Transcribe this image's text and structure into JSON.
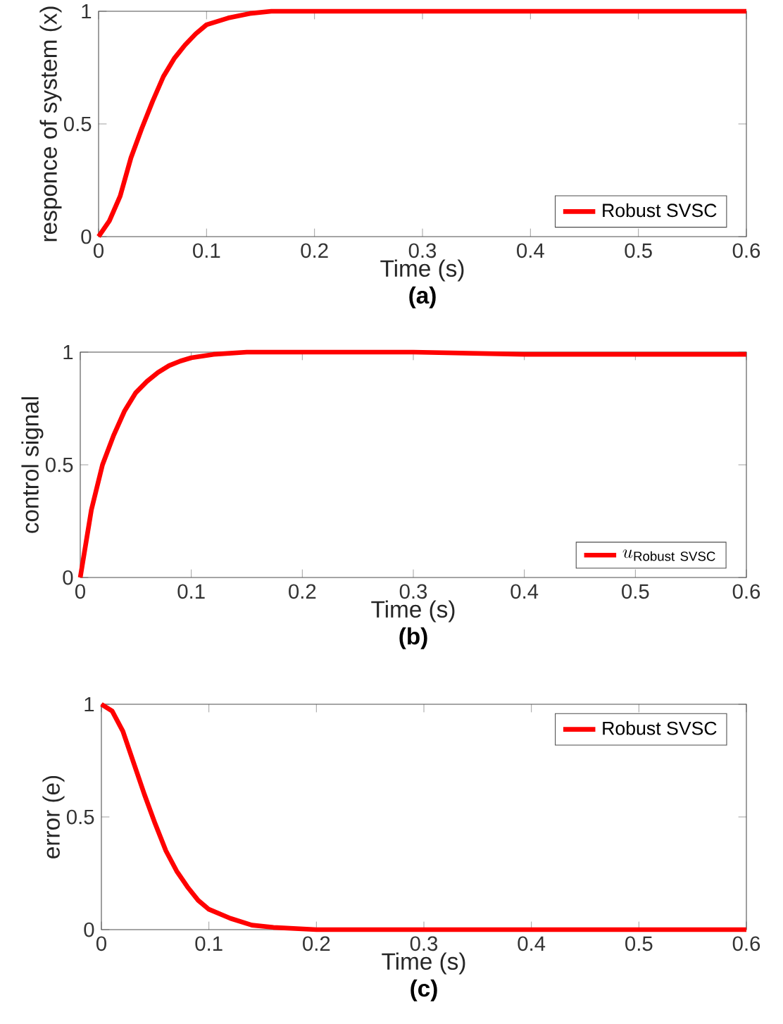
{
  "chart_data": [
    {
      "type": "line",
      "xlabel": "Time (s)",
      "ylabel": "responce of system (x)",
      "annotations": [
        "**(a)**"
      ],
      "xlim": [
        0,
        0.6
      ],
      "ylim": [
        0,
        1
      ],
      "xticks": [
        0,
        0.1,
        0.2,
        0.3,
        0.4,
        0.5,
        0.6
      ],
      "yticks": [
        0,
        0.5,
        1
      ],
      "legend": "bottom right",
      "x": [
        0,
        0.01,
        0.02,
        0.03,
        0.04,
        0.05,
        0.06,
        0.07,
        0.08,
        0.09,
        0.1,
        0.12,
        0.14,
        0.16,
        0.2,
        0.3,
        0.4,
        0.5,
        0.6
      ],
      "series": [
        {
          "name": "Robust SVSC",
          "color": "#ff0000",
          "values": [
            0,
            0.07,
            0.18,
            0.35,
            0.48,
            0.6,
            0.71,
            0.79,
            0.85,
            0.9,
            0.94,
            0.97,
            0.99,
            1,
            1,
            1,
            1,
            1,
            1
          ]
        }
      ]
    },
    {
      "type": "line",
      "xlabel": "Time (s)",
      "ylabel": "control signal",
      "annotations": [
        "**(b)**"
      ],
      "xlim": [
        0,
        0.6
      ],
      "ylim": [
        0,
        1
      ],
      "xticks": [
        0,
        0.1,
        0.2,
        0.3,
        0.4,
        0.5,
        0.6
      ],
      "yticks": [
        0,
        0.5,
        1
      ],
      "legend": "bottom right",
      "x": [
        0,
        0.01,
        0.02,
        0.03,
        0.04,
        0.05,
        0.06,
        0.07,
        0.08,
        0.09,
        0.1,
        0.12,
        0.15,
        0.2,
        0.3,
        0.4,
        0.5,
        0.6
      ],
      "series": [
        {
          "name": "u_{\\mathrm{Robust\\ SVSC}}",
          "color": "#ff0000",
          "values": [
            0,
            0.3,
            0.5,
            0.63,
            0.74,
            0.82,
            0.87,
            0.91,
            0.94,
            0.96,
            0.975,
            0.99,
            1,
            1,
            1,
            0.99,
            0.99,
            0.99
          ]
        }
      ]
    },
    {
      "type": "line",
      "xlabel": "Time (s)",
      "ylabel": "error (e)",
      "annotations": [
        "**(c)**"
      ],
      "xlim": [
        0,
        0.6
      ],
      "ylim": [
        0,
        1
      ],
      "xticks": [
        0,
        0.1,
        0.2,
        0.3,
        0.4,
        0.5,
        0.6
      ],
      "yticks": [
        0,
        0.5,
        1
      ],
      "legend": "top right",
      "x": [
        0,
        0.01,
        0.02,
        0.03,
        0.04,
        0.05,
        0.06,
        0.07,
        0.08,
        0.09,
        0.1,
        0.12,
        0.14,
        0.16,
        0.2,
        0.3,
        0.4,
        0.5,
        0.6
      ],
      "series": [
        {
          "name": "Robust SVSC",
          "color": "#ff0000",
          "values": [
            1,
            0.97,
            0.88,
            0.74,
            0.6,
            0.47,
            0.35,
            0.26,
            0.19,
            0.13,
            0.09,
            0.05,
            0.02,
            0.01,
            0,
            0,
            0,
            0,
            0
          ]
        }
      ]
    }
  ]
}
